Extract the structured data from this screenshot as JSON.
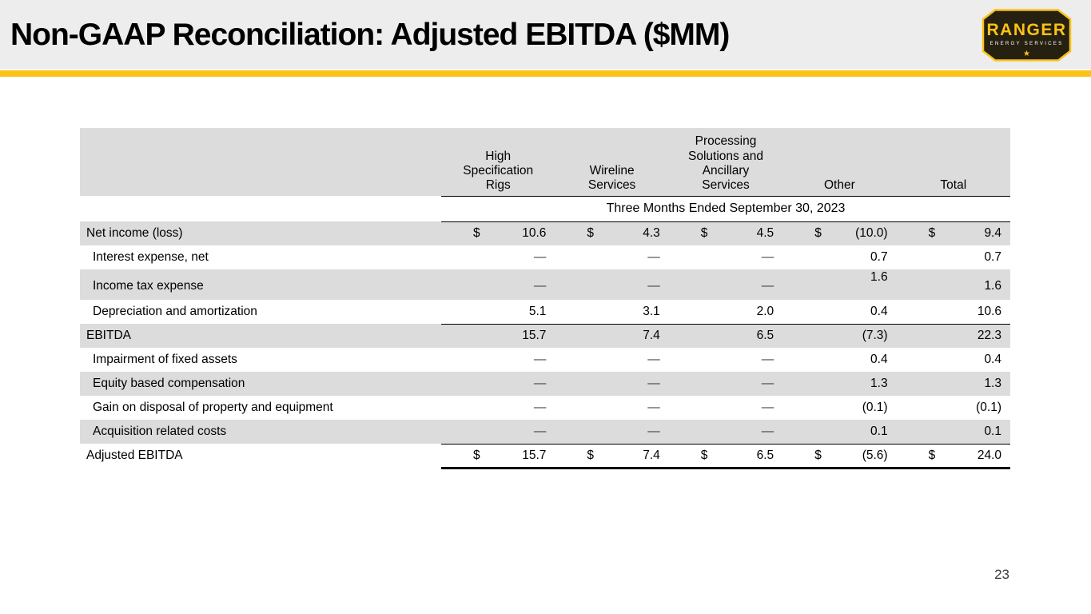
{
  "slide": {
    "title": "Non-GAAP Reconciliation: Adjusted EBITDA ($MM)",
    "page_number": "23"
  },
  "colors": {
    "accent_gold": "#FBC218",
    "header_band_bg": "#EDEDED",
    "table_shaded_row_bg": "#DCDCDC",
    "text": "#000000"
  },
  "logo": {
    "name": "RANGER",
    "subtitle": "ENERGY SERVICES",
    "star_icon": "★"
  },
  "table": {
    "column_headers": [
      {
        "lines": [
          "High",
          "Specification",
          "Rigs"
        ]
      },
      {
        "lines": [
          "Wireline",
          "Services"
        ]
      },
      {
        "lines": [
          "Processing",
          "Solutions and",
          "Ancillary",
          "Services"
        ]
      },
      {
        "lines": [
          "Other"
        ]
      },
      {
        "lines": [
          "Total"
        ]
      }
    ],
    "period_header": "Three Months Ended September 30, 2023",
    "rows": [
      {
        "label": "Net income (loss)",
        "indent": false,
        "shaded": true,
        "dollar": true,
        "tall": false,
        "border": "none",
        "values": [
          "10.6",
          "4.3",
          "4.5",
          "(10.0)",
          "9.4"
        ]
      },
      {
        "label": "Interest expense, net",
        "indent": true,
        "shaded": false,
        "dollar": false,
        "tall": false,
        "border": "none",
        "values": [
          "—",
          "—",
          "—",
          "0.7",
          "0.7"
        ]
      },
      {
        "label": "Income tax expense",
        "indent": true,
        "shaded": true,
        "dollar": false,
        "tall": true,
        "border": "none",
        "raised_column": 3,
        "values": [
          "—",
          "—",
          "—",
          "1.6",
          "1.6"
        ]
      },
      {
        "label": "Depreciation and amortization",
        "indent": true,
        "shaded": false,
        "dollar": false,
        "tall": false,
        "border": "thin",
        "values": [
          "5.1",
          "3.1",
          "2.0",
          "0.4",
          "10.6"
        ]
      },
      {
        "label": "EBITDA",
        "indent": false,
        "shaded": true,
        "dollar": false,
        "tall": false,
        "border": "none",
        "values": [
          "15.7",
          "7.4",
          "6.5",
          "(7.3)",
          "22.3"
        ]
      },
      {
        "label": "Impairment of fixed assets",
        "indent": true,
        "shaded": false,
        "dollar": false,
        "tall": false,
        "border": "none",
        "values": [
          "—",
          "—",
          "—",
          "0.4",
          "0.4"
        ]
      },
      {
        "label": "Equity based compensation",
        "indent": true,
        "shaded": true,
        "dollar": false,
        "tall": false,
        "border": "none",
        "values": [
          "—",
          "—",
          "—",
          "1.3",
          "1.3"
        ]
      },
      {
        "label": "Gain on disposal of property and equipment",
        "indent": true,
        "shaded": false,
        "dollar": false,
        "tall": false,
        "border": "none",
        "values": [
          "—",
          "—",
          "—",
          "(0.1)",
          "(0.1)"
        ]
      },
      {
        "label": "Acquisition related costs",
        "indent": true,
        "shaded": true,
        "dollar": false,
        "tall": false,
        "border": "thin",
        "values": [
          "—",
          "—",
          "—",
          "0.1",
          "0.1"
        ]
      },
      {
        "label": "Adjusted EBITDA",
        "indent": false,
        "shaded": false,
        "dollar": true,
        "tall": false,
        "border": "thick",
        "values": [
          "15.7",
          "7.4",
          "6.5",
          "(5.6)",
          "24.0"
        ]
      }
    ]
  }
}
